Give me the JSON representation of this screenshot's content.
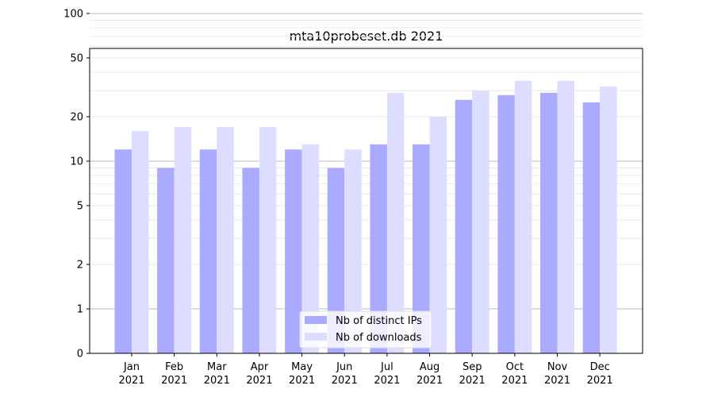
{
  "chart_data": {
    "type": "bar",
    "title": "mta10probeset.db 2021",
    "xlabel": "",
    "ylabel": "",
    "y_scale": "symlog",
    "ylim": [
      0,
      120
    ],
    "yticks": [
      0,
      1,
      2,
      5,
      10,
      20,
      50,
      100
    ],
    "categories": [
      [
        "Jan",
        "2021"
      ],
      [
        "Feb",
        "2021"
      ],
      [
        "Mar",
        "2021"
      ],
      [
        "Apr",
        "2021"
      ],
      [
        "May",
        "2021"
      ],
      [
        "Jun",
        "2021"
      ],
      [
        "Jul",
        "2021"
      ],
      [
        "Aug",
        "2021"
      ],
      [
        "Sep",
        "2021"
      ],
      [
        "Oct",
        "2021"
      ],
      [
        "Nov",
        "2021"
      ],
      [
        "Dec",
        "2021"
      ]
    ],
    "series": [
      {
        "name": "Nb of distinct IPs",
        "color": "#aaaaff",
        "values": [
          12,
          9,
          12,
          9,
          12,
          9,
          13,
          13,
          26,
          28,
          29,
          25
        ]
      },
      {
        "name": "Nb of downloads",
        "color": "#ddddff",
        "values": [
          16,
          17,
          17,
          17,
          13,
          12,
          29,
          20,
          30,
          35,
          35,
          32
        ]
      }
    ],
    "grid": true,
    "legend_position": "bottom-center"
  }
}
